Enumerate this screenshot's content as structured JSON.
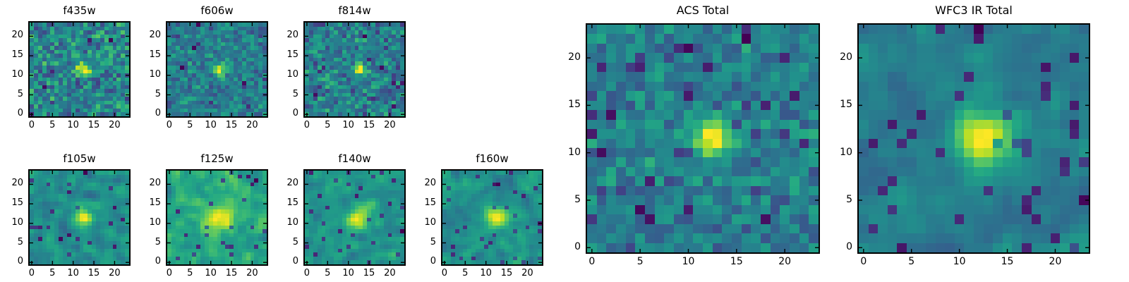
{
  "page": {
    "background": "#ffffff",
    "axis_color": "#000000"
  },
  "chart_data": {
    "type": "heatmap",
    "colormap": "viridis",
    "grid_size": 24,
    "xlim": [
      0,
      23
    ],
    "ylim": [
      0,
      23
    ],
    "xticks": [
      0,
      5,
      10,
      15,
      20
    ],
    "yticks": [
      0,
      5,
      10,
      15,
      20
    ],
    "grid": false,
    "legend": "none",
    "description": "3x3-ish mosaic of HST cutout stamps: a central point source (galaxy) at pixel ~(12.5, 11.5) over sky noise, viridis colormap, origin lower",
    "panels": [
      {
        "id": "f435w",
        "title": "f435w",
        "gen": {
          "seed": 101,
          "base": 0.45,
          "noise": 0.9,
          "dark_frac": 0.03,
          "dip": 0.9,
          "amp": 1.5,
          "sigma": 1.2,
          "smooth": 0,
          "source_x": 12.5,
          "source_y": 11.5
        }
      },
      {
        "id": "f606w",
        "title": "f606w",
        "gen": {
          "seed": 202,
          "base": 0.4,
          "noise": 0.85,
          "dark_frac": 0.05,
          "dip": 0.8,
          "amp": 2.0,
          "sigma": 1.3,
          "smooth": 0,
          "source_x": 12.5,
          "source_y": 11.5
        }
      },
      {
        "id": "f814w",
        "title": "f814w",
        "gen": {
          "seed": 303,
          "base": 0.45,
          "noise": 0.9,
          "dark_frac": 0.04,
          "dip": 0.8,
          "amp": 1.8,
          "sigma": 1.2,
          "smooth": 0,
          "source_x": 12.5,
          "source_y": 11.5
        }
      },
      {
        "id": "f105w",
        "title": "f105w",
        "gen": {
          "seed": 404,
          "base": 0.5,
          "noise": 1.0,
          "dark_frac": 0.05,
          "dip": 1.0,
          "amp": 1.4,
          "sigma": 1.7,
          "smooth": 1,
          "source_x": 12.5,
          "source_y": 11.5
        }
      },
      {
        "id": "f125w",
        "title": "f125w",
        "gen": {
          "seed": 505,
          "base": 0.6,
          "noise": 1.0,
          "dark_frac": 0.04,
          "dip": 1.1,
          "amp": 1.2,
          "sigma": 2.2,
          "smooth": 1,
          "source_x": 12.5,
          "source_y": 11.5
        }
      },
      {
        "id": "f140w",
        "title": "f140w",
        "gen": {
          "seed": 606,
          "base": 0.6,
          "noise": 1.0,
          "dark_frac": 0.04,
          "dip": 1.1,
          "amp": 1.3,
          "sigma": 2.1,
          "smooth": 1,
          "source_x": 12.5,
          "source_y": 11.5
        }
      },
      {
        "id": "f160w",
        "title": "f160w",
        "gen": {
          "seed": 707,
          "base": 0.55,
          "noise": 1.0,
          "dark_frac": 0.05,
          "dip": 1.0,
          "amp": 1.5,
          "sigma": 1.9,
          "smooth": 1,
          "source_x": 12.5,
          "source_y": 11.5
        }
      },
      {
        "id": "acs_total",
        "title": "ACS Total",
        "gen": {
          "seed": 808,
          "base": 0.45,
          "noise": 0.75,
          "dark_frac": 0.07,
          "dip": 1.0,
          "amp": 2.2,
          "sigma": 1.5,
          "smooth": 0,
          "source_x": 12.5,
          "source_y": 11.5
        }
      },
      {
        "id": "wfc3_ir_total",
        "title": "WFC3 IR Total",
        "gen": {
          "seed": 909,
          "base": 0.5,
          "noise": 0.85,
          "dark_frac": 0.06,
          "dip": 1.0,
          "amp": 2.0,
          "sigma": 2.0,
          "smooth": 1,
          "source_x": 12.5,
          "source_y": 11.5
        }
      }
    ]
  }
}
